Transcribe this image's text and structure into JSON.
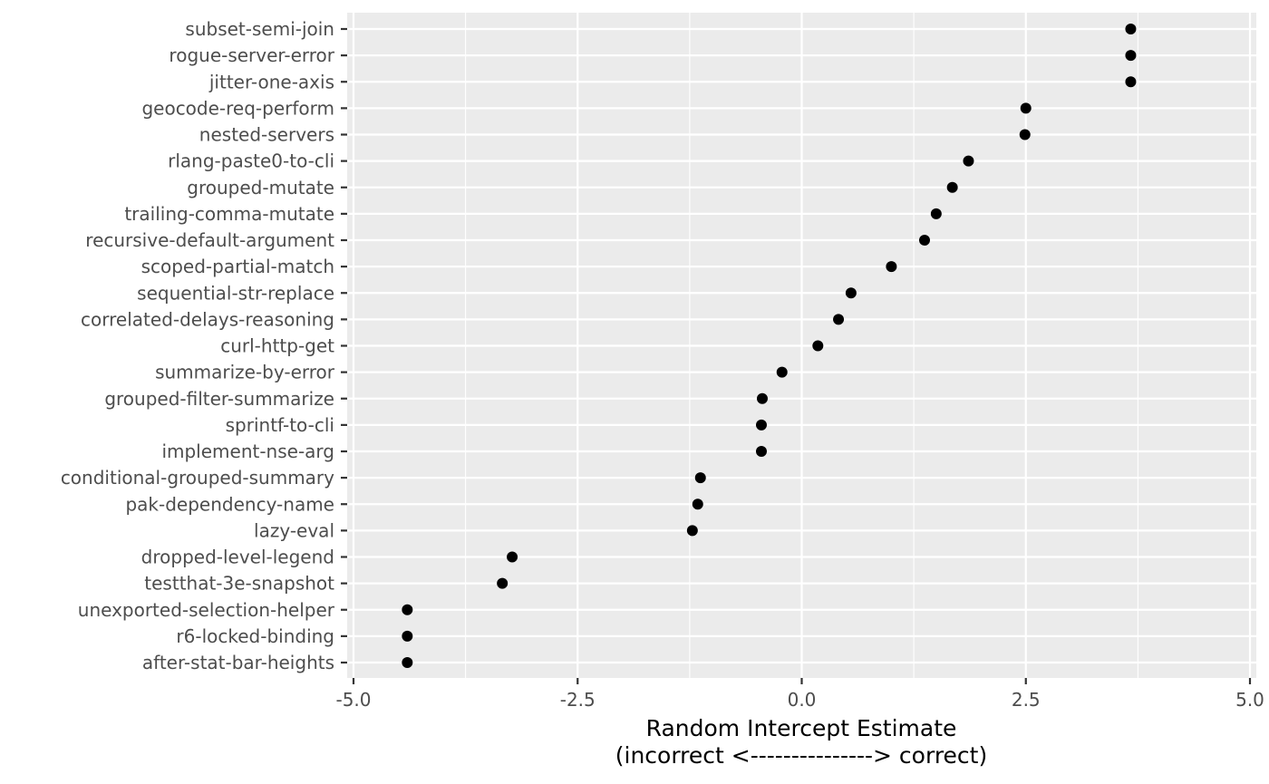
{
  "chart_data": {
    "type": "scatter",
    "title": "",
    "xlabel": "Random Intercept Estimate",
    "xlabel_line2": "(incorrect <---------------> correct)",
    "ylabel": "",
    "xlim": [
      -5.0,
      5.0
    ],
    "x_ticks": [
      -5.0,
      -2.5,
      0.0,
      2.5,
      5.0
    ],
    "x_tick_labels": [
      "-5.0",
      "-2.5",
      "0.0",
      "2.5",
      "5.0"
    ],
    "grid": true,
    "legend": "none",
    "colors": {
      "panel": "#ebebeb",
      "grid": "#ffffff",
      "point": "#000000",
      "tick_text": "#4d4d4d"
    },
    "categories": [
      "subset-semi-join",
      "rogue-server-error",
      "jitter-one-axis",
      "geocode-req-perform",
      "nested-servers",
      "rlang-paste0-to-cli",
      "grouped-mutate",
      "trailing-comma-mutate",
      "recursive-default-argument",
      "scoped-partial-match",
      "sequential-str-replace",
      "correlated-delays-reasoning",
      "curl-http-get",
      "summarize-by-error",
      "grouped-filter-summarize",
      "sprintf-to-cli",
      "implement-nse-arg",
      "conditional-grouped-summary",
      "pak-dependency-name",
      "lazy-eval",
      "dropped-level-legend",
      "testthat-3e-snapshot",
      "unexported-selection-helper",
      "r6-locked-binding",
      "after-stat-bar-heights"
    ],
    "values": [
      3.67,
      3.67,
      3.67,
      2.5,
      2.49,
      1.86,
      1.68,
      1.5,
      1.37,
      1.0,
      0.55,
      0.41,
      0.18,
      -0.22,
      -0.44,
      -0.45,
      -0.45,
      -1.13,
      -1.16,
      -1.22,
      -3.23,
      -3.34,
      -4.4,
      -4.4,
      -4.4
    ]
  }
}
